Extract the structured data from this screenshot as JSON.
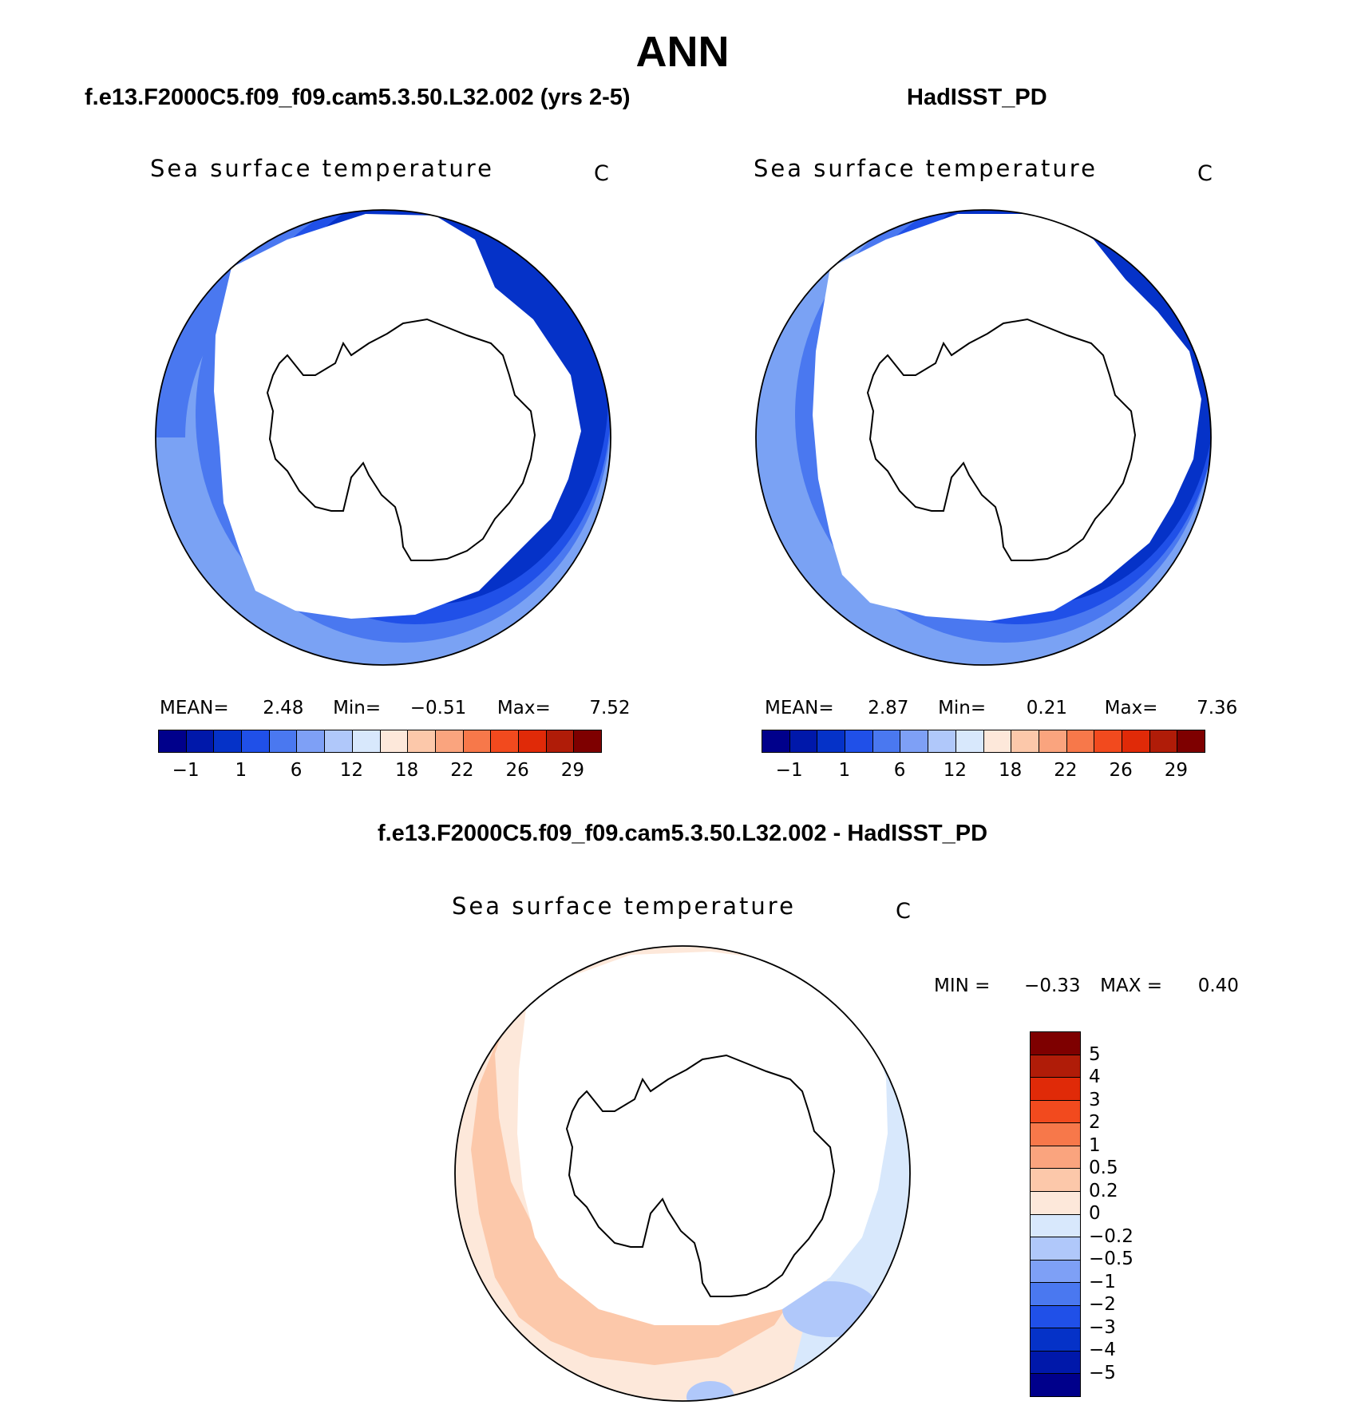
{
  "title": "ANN",
  "panels": [
    {
      "case": "f.e13.F2000C5.f09_f09.cam5.3.50.L32.002 (yrs 2-5)",
      "variable": "Sea surface temperature",
      "units": "C",
      "stats": {
        "mean_label": "MEAN=",
        "mean": "2.48",
        "min_label": "Min=",
        "min": "−0.51",
        "max_label": "Max=",
        "max": "7.52"
      }
    },
    {
      "case": "HadISST_PD",
      "variable": "Sea surface temperature",
      "units": "C",
      "stats": {
        "mean_label": "MEAN=",
        "mean": "2.87",
        "min_label": "Min=",
        "min": "0.21",
        "max_label": "Max=",
        "max": "7.36"
      }
    }
  ],
  "diff_panel": {
    "case": "f.e13.F2000C5.f09_f09.cam5.3.50.L32.002 - HadISST_PD",
    "variable": "Sea surface temperature",
    "units": "C",
    "stats": {
      "min_label": "MIN =",
      "min": "−0.33",
      "max_label": "MAX =",
      "max": "0.40"
    }
  },
  "field_colorbar": {
    "colors": [
      "#00008b",
      "#0018aa",
      "#0532c8",
      "#2050e8",
      "#4a78f0",
      "#7ea0f6",
      "#b0c8fa",
      "#d8e8fc",
      "#fde8da",
      "#fcc8aa",
      "#faa47e",
      "#f7784a",
      "#f24a1e",
      "#e02a08",
      "#b01c08",
      "#7e0000"
    ],
    "labels": [
      "−1",
      "1",
      "6",
      "12",
      "18",
      "22",
      "26",
      "29"
    ]
  },
  "diff_colorbar": {
    "colors": [
      "#7e0000",
      "#b01c08",
      "#e02a08",
      "#f24a1e",
      "#f7784a",
      "#faa47e",
      "#fcc8aa",
      "#fde8da",
      "#d8e8fc",
      "#b0c8fa",
      "#7ea0f6",
      "#4a78f0",
      "#2050e8",
      "#0532c8",
      "#0018aa",
      "#00008b"
    ],
    "labels": [
      "5",
      "4",
      "3",
      "2",
      "1",
      "0.5",
      "0.2",
      "0",
      "−0.2",
      "−0.5",
      "−1",
      "−2",
      "−3",
      "−4",
      "−5"
    ]
  }
}
